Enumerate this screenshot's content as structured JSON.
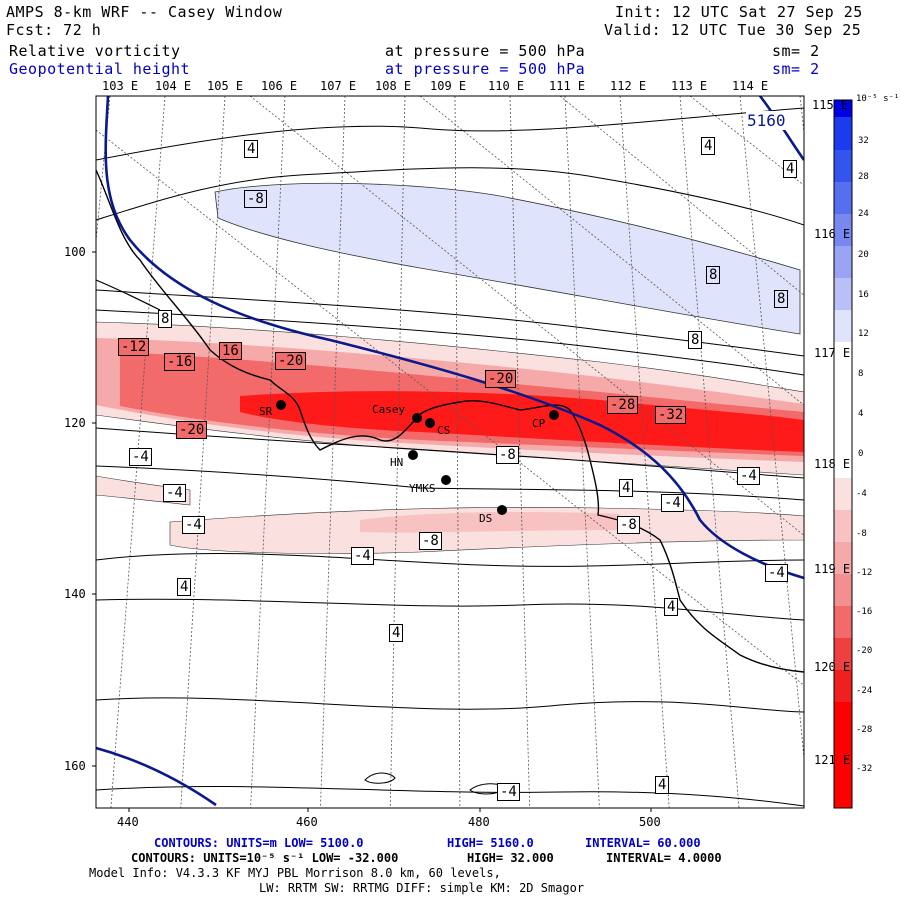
{
  "header": {
    "model": "AMPS 8-km WRF -- Casey Window",
    "init": "Init: 12 UTC Sat 27 Sep 25",
    "fcst": "Fcst:   72 h",
    "valid": "Valid: 12 UTC Tue 30 Sep 25",
    "field1": "Relative vorticity",
    "field1_level": "at pressure =  500 hPa",
    "field1_sm": "sm= 2",
    "field2": "Geopotential height",
    "field2_level": "at pressure =  500 hPa",
    "field2_sm": "sm= 2"
  },
  "longitude_labels_top": [
    "103 E",
    "104 E",
    "105 E",
    "106 E",
    "107 E",
    "108 E",
    "109 E",
    "110 E",
    "111 E",
    "112 E",
    "113 E",
    "114 E",
    "115 E"
  ],
  "longitude_labels_right": [
    "116 E",
    "117 E",
    "118 E",
    "119 E",
    "120 E",
    "121 E"
  ],
  "y_ticks": [
    "100",
    "120",
    "140",
    "160"
  ],
  "x_ticks": [
    "440",
    "460",
    "480",
    "500"
  ],
  "stations": [
    "SR",
    "Casey",
    "CS",
    "CP",
    "HN",
    "YMKS",
    "DS"
  ],
  "vorticity_labels": [
    "4",
    "-8",
    "4",
    "8",
    "8",
    "8",
    "8",
    "-12",
    "-16",
    "16",
    "-20",
    "-20",
    "-28",
    "-32",
    "-20",
    "-4",
    "-8",
    "-4",
    "-4",
    "-4",
    "-8",
    "-8",
    "-4",
    "4",
    "-4",
    "4",
    "-4",
    "4",
    "4",
    "4",
    "-4",
    "4"
  ],
  "height_label": "5160",
  "colorbar": {
    "unit": "10⁻⁵ s⁻¹",
    "ticks": [
      "32",
      "28",
      "24",
      "20",
      "16",
      "12",
      "8",
      "4",
      "0",
      "-4",
      "-8",
      "-12",
      "-16",
      "-20",
      "-24",
      "-28",
      "-32"
    ]
  },
  "footer": {
    "line1_prefix": "CONTOURS:  UNITS=m  LOW=  5100.0",
    "line1_high": "HIGH=  5160.0",
    "line1_interval": "INTERVAL=   60.000",
    "line2_prefix": "CONTOURS:  UNITS=10⁻⁵ s⁻¹  LOW= -32.000",
    "line2_high": "HIGH=  32.000",
    "line2_interval": "INTERVAL=   4.0000",
    "line3": "Model Info: V4.3.3   KF     MYJ PBL  Morrison        8.0 km,  60 levels,",
    "line4": "LW: RRTM SW: RRTMG   DIFF: simple KM: 2D Smagor"
  },
  "colors": {
    "height_contour": "#0a1a8c",
    "pos_light": "#dfe3fb",
    "neg_light": "#fbe0e0",
    "neg_mid": "#f48f8f",
    "neg_strong": "#ee4040",
    "neg_max": "#ff0000"
  }
}
